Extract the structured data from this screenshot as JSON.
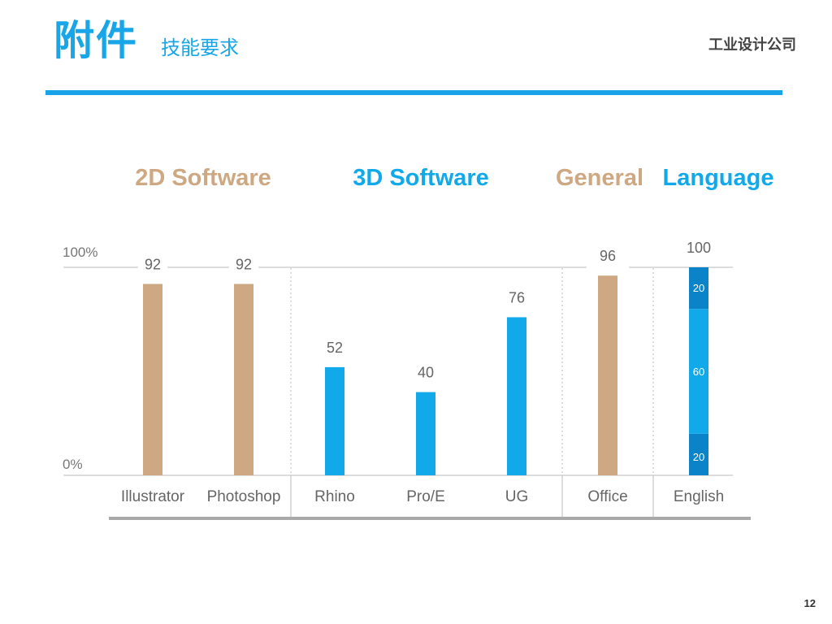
{
  "header": {
    "title": "附件",
    "subtitle": "技能要求",
    "company": "工业设计公司"
  },
  "footer": {
    "page_number": "12"
  },
  "colors": {
    "accent_blue": "#1aa3e6",
    "bar_tan": "#cda882",
    "bar_blue": "#12a9ea",
    "stack_dark_blue": "#0a83c9",
    "axis_gray": "#bbbbbb",
    "base_gray": "#a9a9a9"
  },
  "chart_data": {
    "type": "bar",
    "ylim": [
      0,
      100
    ],
    "y_tick_labels": [
      "100%",
      "0%"
    ],
    "groups": [
      {
        "label": "2D Software",
        "color": "#cda882",
        "categories": [
          "Illustrator",
          "Photoshop"
        ]
      },
      {
        "label": "3D Software",
        "color": "#12a9ea",
        "categories": [
          "Rhino",
          "Pro/E",
          "UG"
        ]
      },
      {
        "label": "General",
        "color": "#cda882",
        "categories": [
          "Office"
        ]
      },
      {
        "label": "Language",
        "color": "#12a9ea",
        "categories": [
          "English"
        ]
      }
    ],
    "categories": [
      "Illustrator",
      "Photoshop",
      "Rhino",
      "Pro/E",
      "UG",
      "Office",
      "English"
    ],
    "values": [
      92,
      92,
      52,
      40,
      76,
      96,
      100
    ],
    "value_labels": [
      "92",
      "92",
      "52",
      "40",
      "76",
      "96",
      "100"
    ],
    "stacked": {
      "category": "English",
      "segments": [
        {
          "value": 20,
          "label": "20",
          "color": "#0a83c9"
        },
        {
          "value": 60,
          "label": "60",
          "color": "#12a9ea"
        },
        {
          "value": 20,
          "label": "20",
          "color": "#0a83c9"
        }
      ]
    }
  }
}
